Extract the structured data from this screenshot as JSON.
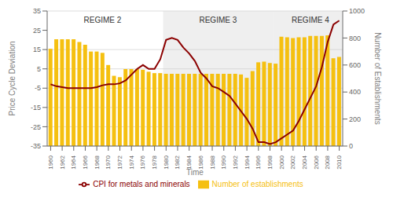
{
  "chart_data": {
    "type": "bar",
    "xlabel": "Time",
    "ylabel": "Price Cycle Deviation",
    "y2label": "Number of Establishments",
    "x": [
      1960,
      1961,
      1962,
      1963,
      1964,
      1965,
      1966,
      1967,
      1968,
      1969,
      1970,
      1971,
      1972,
      1973,
      1974,
      1975,
      1976,
      1977,
      1978,
      1979,
      1980,
      1981,
      1982,
      1983,
      1984,
      1985,
      1986,
      1987,
      1988,
      1989,
      1990,
      1991,
      1992,
      1993,
      1994,
      1995,
      1996,
      1997,
      1998,
      1999,
      2000,
      2001,
      2002,
      2003,
      2004,
      2005,
      2006,
      2007,
      2008,
      2009,
      2010
    ],
    "xlim": [
      1959.4,
      2010.6
    ],
    "xticks": [
      1960,
      1962,
      1964,
      1966,
      1968,
      1970,
      1972,
      1974,
      1976,
      1978,
      1980,
      1982,
      1984,
      1986,
      1988,
      1990,
      1992,
      1994,
      1996,
      1998,
      2000,
      2002,
      2004,
      2006,
      2008,
      2010
    ],
    "ylim": [
      -35,
      35
    ],
    "yticks": [
      -35,
      -25,
      -15,
      -5,
      5,
      15,
      25,
      35
    ],
    "y2lim": [
      0,
      1000
    ],
    "y2ticks": [
      0,
      200,
      400,
      600,
      800,
      1000
    ],
    "grid": true,
    "legend": "bottom",
    "series": [
      {
        "name": "Number of establishments",
        "type": "bar",
        "axis": "y2",
        "color": "#F5C010",
        "values": [
          720,
          790,
          790,
          790,
          790,
          770,
          750,
          700,
          700,
          690,
          600,
          520,
          510,
          570,
          570,
          570,
          565,
          550,
          540,
          540,
          535,
          535,
          535,
          535,
          535,
          535,
          535,
          535,
          535,
          535,
          535,
          535,
          535,
          530,
          505,
          555,
          620,
          625,
          615,
          610,
          810,
          805,
          800,
          805,
          805,
          815,
          815,
          815,
          820,
          650,
          660
        ]
      },
      {
        "name": "CPI for metals and minerals",
        "type": "line",
        "axis": "y",
        "color": "#8B0000",
        "values": [
          -3,
          -4,
          -4.5,
          -5,
          -5,
          -5,
          -5,
          -5,
          -4.5,
          -3.5,
          -3,
          -3,
          -2.5,
          -1,
          2,
          5,
          7,
          5,
          5,
          10,
          20,
          21,
          20,
          16,
          13,
          9,
          3,
          0,
          -4,
          -5,
          -7,
          -9,
          -13,
          -17,
          -21,
          -26,
          -33,
          -33,
          -34,
          -33,
          -31,
          -29,
          -27,
          -22,
          -16,
          -10,
          -4,
          6,
          19,
          28,
          30
        ]
      }
    ],
    "shaded_regions": [
      {
        "x0": 1979.5,
        "x1": 1998.5,
        "color": "#D0D0D0"
      },
      {
        "x0": 1998.5,
        "x1": 2010.5,
        "color": "#D0D0D0"
      }
    ],
    "annotations": [
      {
        "text": "REGIME 2",
        "x": 1969,
        "y": 34
      },
      {
        "text": "REGIME 3",
        "x": 1989,
        "y": 34
      },
      {
        "text": "REGIME 4",
        "x": 2005,
        "y": 34
      }
    ]
  }
}
